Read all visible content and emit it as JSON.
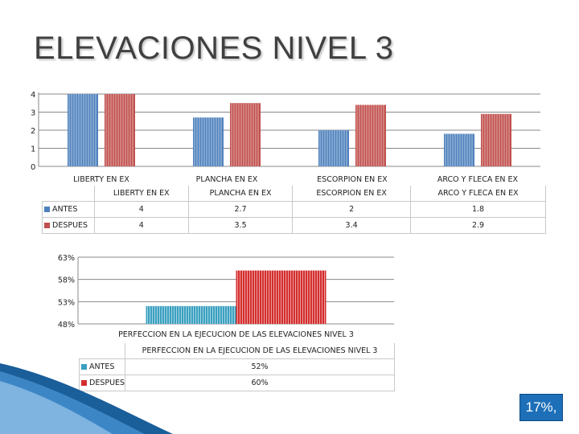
{
  "page": {
    "title": "ELEVACIONES NIVEL 3",
    "badge": "17%,"
  },
  "colors": {
    "antes": "#4f81bd",
    "despues": "#c0504d",
    "antes2": "#3aa0c0",
    "despues2": "#d42d2d",
    "grid": "#888888"
  },
  "chart_data": [
    {
      "type": "bar",
      "categories": [
        "LIBERTY EN EX",
        "PLANCHA EN EX",
        "ESCORPION EN EX",
        "ARCO Y FLECA EN EX"
      ],
      "series": [
        {
          "name": "ANTES",
          "values": [
            4,
            2.7,
            2,
            1.8
          ]
        },
        {
          "name": "DESPUES",
          "values": [
            4,
            3.5,
            3.4,
            2.9
          ]
        }
      ],
      "yticks": [
        "0",
        "1",
        "2",
        "3",
        "4"
      ],
      "ylim": [
        0,
        4
      ],
      "table_values": {
        "ANTES": [
          "4",
          "2.7",
          "2",
          "1.8"
        ],
        "DESPUES": [
          "4",
          "3.5",
          "3.4",
          "2.9"
        ]
      }
    },
    {
      "type": "bar",
      "categories": [
        "PERFECCION EN LA EJECUCION DE LAS ELEVACIONES NIVEL 3"
      ],
      "series": [
        {
          "name": "ANTES",
          "values": [
            52
          ]
        },
        {
          "name": "DESPUES",
          "values": [
            60
          ]
        }
      ],
      "yticks": [
        "48%",
        "53%",
        "58%",
        "63%"
      ],
      "ylim": [
        48,
        63
      ],
      "table_values": {
        "ANTES": [
          "52%"
        ],
        "DESPUES": [
          "60%"
        ]
      }
    }
  ]
}
